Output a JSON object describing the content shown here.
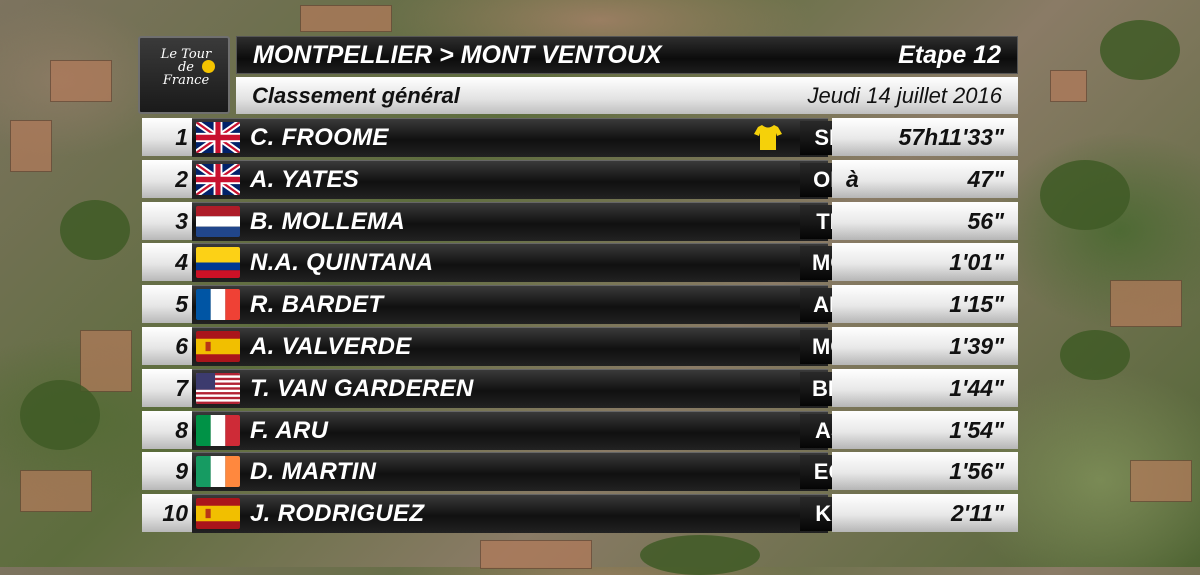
{
  "header": {
    "logo_text": "Le Tour de France",
    "route": "MONTPELLIER > MONT VENTOUX",
    "stage": "Etape 12",
    "classification": "Classement général",
    "date": "Jeudi 14 juillet 2016"
  },
  "colors": {
    "yellow_jersey": "#f5d10a",
    "header_dark": "#111111",
    "box_light": "#ececec"
  },
  "riders": [
    {
      "rank": "1",
      "flag": "gb",
      "name": "C. FROOME",
      "team": "SKY",
      "prefix": "",
      "time": "57h11'33\"",
      "jersey": "yellow-jersey-icon"
    },
    {
      "rank": "2",
      "flag": "gb",
      "name": "A. YATES",
      "team": "OBE",
      "prefix": "à",
      "time": "47\""
    },
    {
      "rank": "3",
      "flag": "nl",
      "name": "B. MOLLEMA",
      "team": "TFS",
      "prefix": "",
      "time": "56\""
    },
    {
      "rank": "4",
      "flag": "co",
      "name": "N.A. QUINTANA",
      "team": "MOV",
      "prefix": "",
      "time": "1'01\""
    },
    {
      "rank": "5",
      "flag": "fr",
      "name": "R. BARDET",
      "team": "ALM",
      "prefix": "",
      "time": "1'15\""
    },
    {
      "rank": "6",
      "flag": "es",
      "name": "A. VALVERDE",
      "team": "MOV",
      "prefix": "",
      "time": "1'39\""
    },
    {
      "rank": "7",
      "flag": "us",
      "name": "T. VAN GARDEREN",
      "team": "BMC",
      "prefix": "",
      "time": "1'44\""
    },
    {
      "rank": "8",
      "flag": "it",
      "name": "F. ARU",
      "team": "AST",
      "prefix": "",
      "time": "1'54\""
    },
    {
      "rank": "9",
      "flag": "ie",
      "name": "D. MARTIN",
      "team": "EQS",
      "prefix": "",
      "time": "1'56\""
    },
    {
      "rank": "10",
      "flag": "es",
      "name": "J. RODRIGUEZ",
      "team": "KAT",
      "prefix": "",
      "time": "2'11\""
    }
  ]
}
